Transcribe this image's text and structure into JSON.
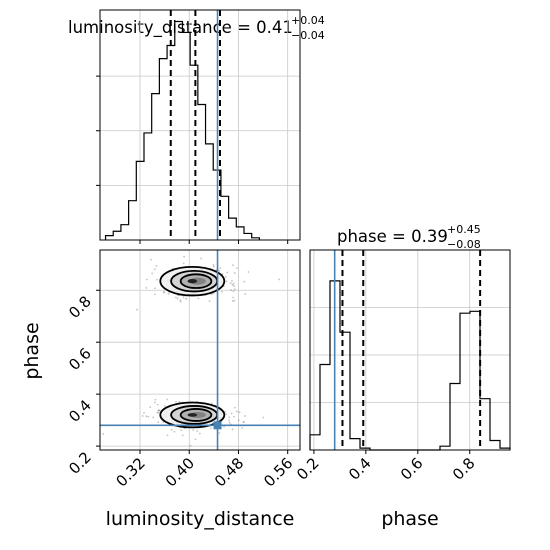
{
  "chart_data": {
    "type": "corner",
    "params": [
      "luminosity_distance",
      "phase"
    ],
    "truth": {
      "luminosity_distance": 0.446,
      "phase": 0.28
    },
    "titles": {
      "luminosity_distance": {
        "label": "luminosity_distance = 0.41",
        "plus": "+0.04",
        "minus": "−0.04"
      },
      "phase": {
        "label": "phase = 0.39",
        "plus": "+0.45",
        "minus": "−0.08"
      }
    },
    "axis_labels": {
      "x1": "luminosity_distance",
      "x2": "phase",
      "y": "phase"
    },
    "ranges": {
      "luminosity_distance": [
        0.255,
        0.58
      ],
      "phase": [
        0.185,
        0.955
      ]
    },
    "ticks": {
      "luminosity_distance": [
        "0.32",
        "0.40",
        "0.48",
        "0.56"
      ],
      "phase": [
        "0.2",
        "0.4",
        "0.6",
        "0.8"
      ]
    },
    "quantiles": {
      "luminosity_distance": [
        0.37,
        0.41,
        0.45
      ],
      "phase": [
        0.31,
        0.39,
        0.84
      ]
    },
    "hist_luminosity_distance": {
      "bin_start": 0.264,
      "bin_width": 0.0125,
      "counts": [
        0.02,
        0.04,
        0.07,
        0.18,
        0.36,
        0.49,
        0.67,
        0.83,
        0.89,
        1.0,
        0.95,
        0.8,
        0.62,
        0.44,
        0.32,
        0.2,
        0.1,
        0.06,
        0.03,
        0.01
      ]
    },
    "hist_phase": {
      "bin_start": 0.185,
      "bin_width": 0.0385,
      "counts": [
        0.08,
        0.45,
        0.89,
        0.62,
        0.06,
        0.01,
        0,
        0,
        0,
        0,
        0,
        0,
        0,
        0.02,
        0.35,
        0.72,
        0.73,
        0.27,
        0.05,
        0.01
      ]
    },
    "grid": true,
    "colors": {
      "truth": "#4682b4",
      "lines": "#000000",
      "grid": "#c8c8c8",
      "points": "#555555"
    }
  }
}
